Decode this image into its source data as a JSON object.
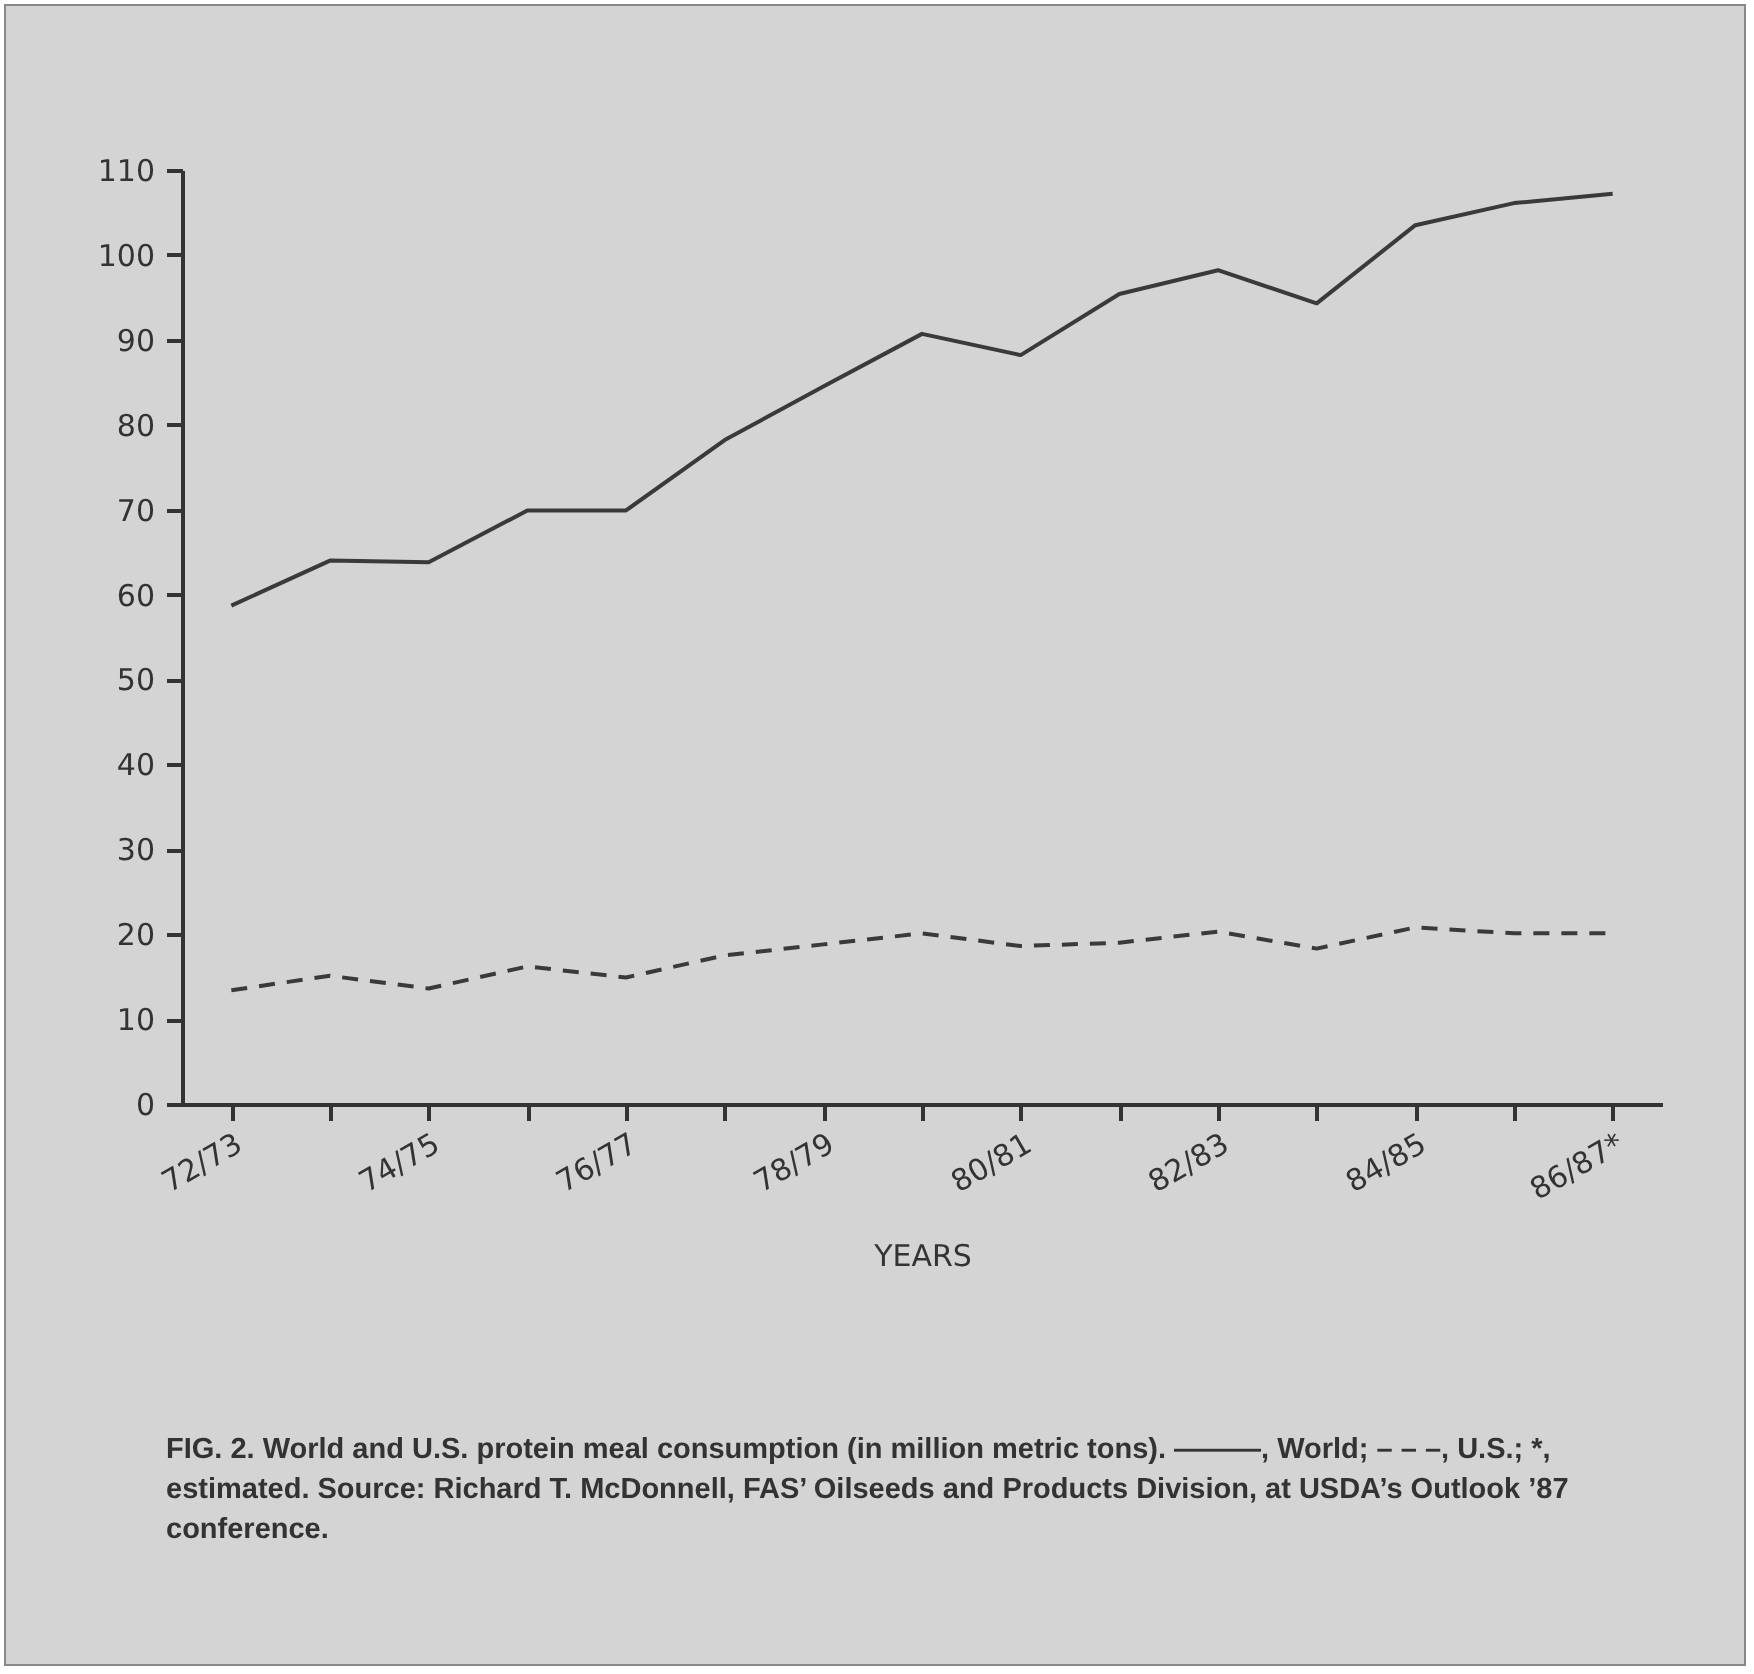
{
  "chart_data": {
    "type": "line",
    "xlabel": "YEARS",
    "categories": [
      "72/73",
      null,
      "74/75",
      null,
      "76/77",
      null,
      "78/79",
      null,
      "80/81",
      null,
      "82/83",
      null,
      "84/85",
      null,
      "86/87*"
    ],
    "series": [
      {
        "color": "#3a3a3a",
        "line_style": "solid",
        "values": [
          58.7,
          64.0,
          63.8,
          69.9,
          69.9,
          78.2,
          84.5,
          90.7,
          88.2,
          95.4,
          98.2,
          94.3,
          103.5,
          106.1,
          107.2
        ]
      },
      {
        "color": "#3a3a3a",
        "line_style": "dashed",
        "values": [
          13.4,
          15.1,
          13.6,
          16.2,
          14.9,
          17.5,
          18.8,
          20.1,
          18.6,
          19.0,
          20.3,
          18.3,
          20.8,
          20.1,
          20.1
        ]
      }
    ],
    "ylim": [
      0,
      110
    ],
    "yticks": [
      0,
      10,
      20,
      30,
      40,
      50,
      60,
      70,
      80,
      90,
      100,
      110
    ],
    "grid": false,
    "marker": "none",
    "annotations": [
      "FIG. 2. World and U.S. protein meal consumption (in million metric tons). ———, World; – – –, U.S.; *, estimated. Source: Richard T. McDonnell, FAS’ Oilseeds and Products Division, at USDA’s Outlook ’87 conference."
    ]
  }
}
